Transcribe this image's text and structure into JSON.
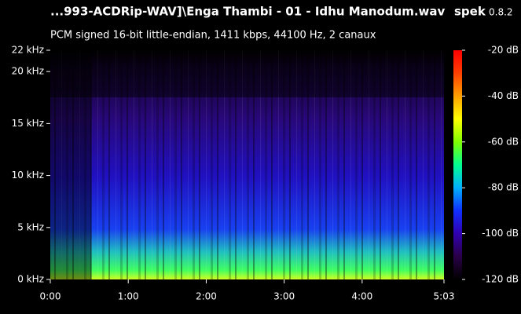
{
  "chart_data": {
    "type": "spectrogram",
    "title": "...993-ACDRip-WAV]\\Enga Thambi - 01 - Idhu Manodum.wav",
    "app_name": "spek",
    "app_version": "0.8.2",
    "subtitle": "PCM signed 16-bit little-endian, 1411 kbps, 44100 Hz, 2 canaux",
    "xlim": [
      0,
      303
    ],
    "xticks": [
      {
        "value": 0,
        "label": "0:00"
      },
      {
        "value": 60,
        "label": "1:00"
      },
      {
        "value": 120,
        "label": "2:00"
      },
      {
        "value": 180,
        "label": "3:00"
      },
      {
        "value": 240,
        "label": "4:00"
      },
      {
        "value": 303,
        "label": "5:03"
      }
    ],
    "ylim": [
      0,
      22.05
    ],
    "yticks": [
      {
        "value": 0,
        "label": "0 kHz"
      },
      {
        "value": 5,
        "label": "5 kHz"
      },
      {
        "value": 10,
        "label": "10 kHz"
      },
      {
        "value": 15,
        "label": "15 kHz"
      },
      {
        "value": 20,
        "label": "20 kHz"
      },
      {
        "value": 22.05,
        "label": "22 kHz"
      }
    ],
    "colorbar": {
      "lim": [
        -120,
        -20
      ],
      "ticks": [
        {
          "value": -20,
          "label": "-20 dB"
        },
        {
          "value": -40,
          "label": "-40 dB"
        },
        {
          "value": -60,
          "label": "-60 dB"
        },
        {
          "value": -80,
          "label": "-80 dB"
        },
        {
          "value": -100,
          "label": "-100 dB"
        },
        {
          "value": -120,
          "label": "-120 dB"
        }
      ],
      "colormap": [
        "#000000",
        "#2a0048",
        "#3000b0",
        "#1030ff",
        "#00b0ff",
        "#00ff90",
        "#80ff00",
        "#ffff00",
        "#ffa000",
        "#ff4000",
        "#ff0000"
      ]
    }
  }
}
